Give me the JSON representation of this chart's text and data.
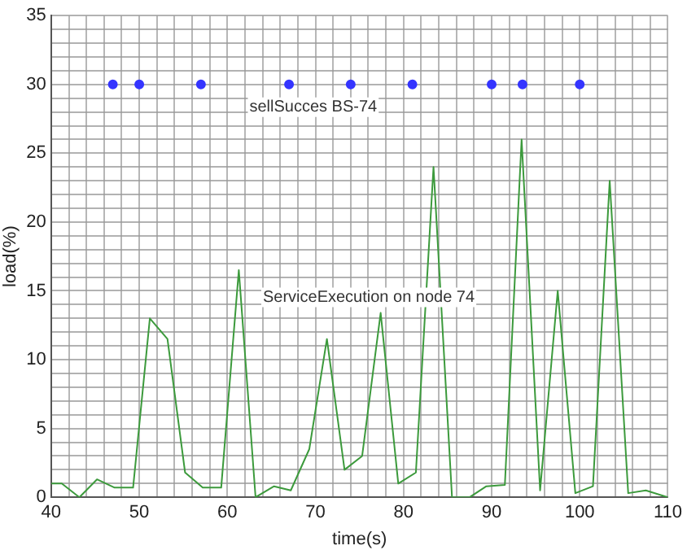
{
  "chart_data": {
    "type": "line",
    "xlabel": "time(s)",
    "ylabel": "load(%)",
    "xlim": [
      40,
      110
    ],
    "xticks": [
      40,
      {
        "value": 42,
        "label": null
      },
      {
        "value": 44,
        "label": null
      },
      {
        "value": 46,
        "label": null
      },
      {
        "value": 48,
        "label": null
      },
      50,
      {
        "value": 52,
        "label": null
      },
      {
        "value": 54,
        "label": null
      },
      {
        "value": 56,
        "label": null
      },
      {
        "value": 58,
        "label": null
      },
      60,
      {
        "value": 62,
        "label": null
      },
      {
        "value": 64,
        "label": null
      },
      {
        "value": 66,
        "label": null
      },
      {
        "value": 68,
        "label": null
      },
      70,
      {
        "value": 72,
        "label": null
      },
      {
        "value": 74,
        "label": null
      },
      {
        "value": 76,
        "label": null
      },
      {
        "value": 78,
        "label": null
      },
      80,
      {
        "value": 82,
        "label": null
      },
      {
        "value": 84,
        "label": null
      },
      {
        "value": 86,
        "label": null
      },
      {
        "value": 88,
        "label": null
      },
      90,
      {
        "value": 92,
        "label": null
      },
      {
        "value": 94,
        "label": null
      },
      {
        "value": 96,
        "label": null
      },
      {
        "value": 98,
        "label": null
      },
      100,
      {
        "value": 102,
        "label": null
      },
      {
        "value": 104,
        "label": null
      },
      {
        "value": 106,
        "label": null
      },
      {
        "value": 108,
        "label": null
      },
      110
    ],
    "ylim": [
      0,
      35
    ],
    "yticks": [
      0,
      {
        "value": 1,
        "label": null
      },
      {
        "value": 2,
        "label": null
      },
      {
        "value": 3,
        "label": null
      },
      {
        "value": 4,
        "label": null
      },
      5,
      {
        "value": 6,
        "label": null
      },
      {
        "value": 7,
        "label": null
      },
      {
        "value": 8,
        "label": null
      },
      {
        "value": 9,
        "label": null
      },
      10,
      {
        "value": 11,
        "label": null
      },
      {
        "value": 12,
        "label": null
      },
      {
        "value": 13,
        "label": null
      },
      {
        "value": 14,
        "label": null
      },
      15,
      {
        "value": 16,
        "label": null
      },
      {
        "value": 17,
        "label": null
      },
      {
        "value": 18,
        "label": null
      },
      {
        "value": 19,
        "label": null
      },
      20,
      {
        "value": 21,
        "label": null
      },
      {
        "value": 22,
        "label": null
      },
      {
        "value": 23,
        "label": null
      },
      {
        "value": 24,
        "label": null
      },
      25,
      {
        "value": 26,
        "label": null
      },
      {
        "value": 27,
        "label": null
      },
      {
        "value": 28,
        "label": null
      },
      {
        "value": 29,
        "label": null
      },
      30,
      {
        "value": 31,
        "label": null
      },
      {
        "value": 32,
        "label": null
      },
      {
        "value": 33,
        "label": null
      },
      {
        "value": 34,
        "label": null
      },
      35
    ],
    "grid": true,
    "legend": false,
    "line_style": "solid",
    "series": [
      {
        "type": "line",
        "color": "#3c9a3c",
        "marker": "none",
        "x": [
          40,
          41.2,
          43.2,
          45.2,
          47.2,
          49.3,
          51.2,
          53.2,
          55.2,
          57.2,
          59.3,
          61.3,
          63.2,
          65.3,
          67.2,
          69.3,
          71.3,
          73.3,
          75.3,
          77.4,
          79.4,
          81.4,
          83.4,
          85.5,
          87.5,
          89.4,
          91.5,
          93.4,
          95.5,
          97.5,
          99.5,
          101.5,
          103.4,
          105.5,
          107.5,
          110
        ],
        "values": [
          1,
          1,
          0,
          1.3,
          0.7,
          0.7,
          13,
          11.5,
          1.8,
          0.7,
          0.7,
          16.5,
          0,
          0.8,
          0.5,
          3.5,
          11.5,
          2,
          3,
          13.4,
          1,
          1.8,
          24,
          0,
          0,
          0.8,
          0.9,
          26,
          0.5,
          15,
          0.3,
          0.8,
          23,
          0.3,
          0.5,
          0
        ]
      },
      {
        "type": "scatter",
        "color": "#3535ff",
        "marker": "circle",
        "x": [
          47,
          50,
          57,
          67,
          74,
          81,
          90,
          93.5,
          100
        ],
        "values": [
          30,
          30,
          30,
          30,
          30,
          30,
          30,
          30,
          30
        ]
      }
    ],
    "annotations": [
      "sellSucces BS-74",
      "ServiceExecution on node 74"
    ]
  }
}
